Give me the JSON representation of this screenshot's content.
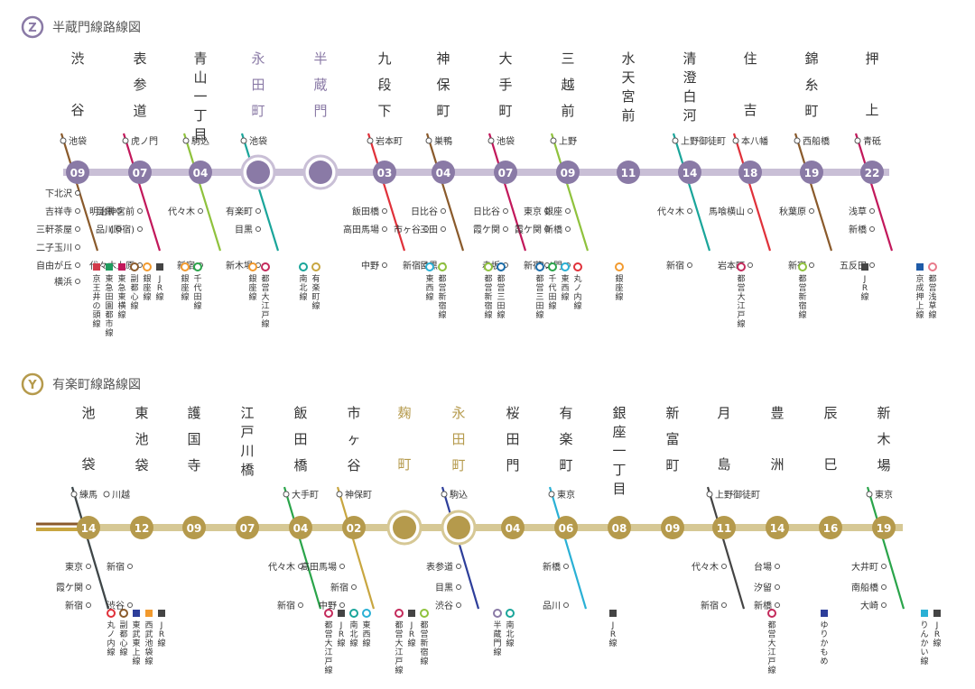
{
  "colors": {
    "hanzomon": "#8a7aa6",
    "hanzomon_line": "#c9bfd6",
    "yurakucho": "#b59a4c",
    "yurakucho_line": "#d6c895"
  },
  "maps": [
    {
      "badge": "Z",
      "title": "半蔵門線路線図",
      "stations": [
        {
          "name": "渋谷",
          "number": "09",
          "highlight": false
        },
        {
          "name": "表参道",
          "number": "07",
          "highlight": false
        },
        {
          "name": "青山一丁目",
          "number": "04",
          "highlight": false
        },
        {
          "name": "永田町",
          "number": "",
          "highlight": true
        },
        {
          "name": "半蔵門",
          "number": "",
          "highlight": true
        },
        {
          "name": "九段下",
          "number": "03",
          "highlight": false
        },
        {
          "name": "神保町",
          "number": "04",
          "highlight": false
        },
        {
          "name": "大手町",
          "number": "07",
          "highlight": false
        },
        {
          "name": "三越前",
          "number": "09",
          "highlight": false
        },
        {
          "name": "水天宮前",
          "number": "11",
          "highlight": false
        },
        {
          "name": "清澄白河",
          "number": "14",
          "highlight": false
        },
        {
          "name": "住吉",
          "number": "18",
          "highlight": false
        },
        {
          "name": "錦糸町",
          "number": "19",
          "highlight": false
        },
        {
          "name": "押上",
          "number": "22",
          "highlight": false
        }
      ],
      "labels_above": [
        {
          "text": "池袋",
          "at": 0
        },
        {
          "text": "虎ノ門",
          "at": 1
        },
        {
          "text": "駒込",
          "at": 2
        },
        {
          "text": "池袋",
          "at": 3
        },
        {
          "text": "岩本町",
          "at": 5
        },
        {
          "text": "巣鴨",
          "at": 6
        },
        {
          "text": "池袋",
          "at": 7
        },
        {
          "text": "上野",
          "at": 8
        },
        {
          "text": "上野御徒町",
          "at": 10
        },
        {
          "text": "本八幡",
          "at": 11
        },
        {
          "text": "西船橋",
          "at": 12
        },
        {
          "text": "青砥",
          "at": 13
        }
      ],
      "labels_below": [
        {
          "text": "下北沢",
          "at": 0,
          "row": 0
        },
        {
          "text": "吉祥寺",
          "at": 0,
          "row": 1
        },
        {
          "text": "三軒茶屋",
          "at": 0,
          "row": 2
        },
        {
          "text": "二子玉川",
          "at": 0,
          "row": 3
        },
        {
          "text": "自由が丘",
          "at": 0,
          "row": 4
        },
        {
          "text": "横浜",
          "at": 0,
          "row": 5
        },
        {
          "text": "目黒",
          "at": 0,
          "row": 1
        },
        {
          "text": "品川",
          "at": 0,
          "row": 2
        },
        {
          "text": "明治神宮前",
          "at": 1,
          "row": 1
        },
        {
          "text": "(原宿)",
          "at": 1,
          "row": 2
        },
        {
          "text": "代々木上原",
          "at": 1,
          "row": 4
        },
        {
          "text": "代々木",
          "at": 2,
          "row": 1
        },
        {
          "text": "新宿",
          "at": 2,
          "row": 4
        },
        {
          "text": "有楽町",
          "at": 3,
          "row": 1
        },
        {
          "text": "目黒",
          "at": 3,
          "row": 2
        },
        {
          "text": "新木場",
          "at": 3,
          "row": 4
        },
        {
          "text": "飯田橋",
          "at": 5,
          "row": 1
        },
        {
          "text": "高田馬場",
          "at": 5,
          "row": 2
        },
        {
          "text": "市ヶ谷",
          "at": 5,
          "row": 2
        },
        {
          "text": "中野",
          "at": 5,
          "row": 4
        },
        {
          "text": "新宿",
          "at": 5,
          "row": 4
        },
        {
          "text": "日比谷",
          "at": 6,
          "row": 1
        },
        {
          "text": "三田",
          "at": 6,
          "row": 2
        },
        {
          "text": "目黒",
          "at": 6,
          "row": 4
        },
        {
          "text": "日比谷",
          "at": 7,
          "row": 1
        },
        {
          "text": "東京",
          "at": 7,
          "row": 1
        },
        {
          "text": "霞ケ関",
          "at": 7,
          "row": 2
        },
        {
          "text": "霞ケ関",
          "at": 7,
          "row": 2
        },
        {
          "text": "赤坂",
          "at": 7,
          "row": 4
        },
        {
          "text": "新宿",
          "at": 7,
          "row": 4
        },
        {
          "text": "銀座",
          "at": 8,
          "row": 1
        },
        {
          "text": "新橋",
          "at": 8,
          "row": 2
        },
        {
          "text": "虎ノ門",
          "at": 8,
          "row": 4
        },
        {
          "text": "代々木",
          "at": 10,
          "row": 1
        },
        {
          "text": "新宿",
          "at": 10,
          "row": 4
        },
        {
          "text": "馬喰横山",
          "at": 11,
          "row": 1
        },
        {
          "text": "岩本町",
          "at": 11,
          "row": 4
        },
        {
          "text": "秋葉原",
          "at": 12,
          "row": 1
        },
        {
          "text": "新宿",
          "at": 12,
          "row": 4
        },
        {
          "text": "浅草",
          "at": 13,
          "row": 1
        },
        {
          "text": "新橋",
          "at": 13,
          "row": 2
        },
        {
          "text": "五反田",
          "at": 13,
          "row": 4
        }
      ],
      "legend": [
        {
          "text": "京王井の頭線",
          "color": "#d23a4a",
          "square": true,
          "x": 107
        },
        {
          "text": "東急田園都市線",
          "color": "#1f9b5e",
          "square": true,
          "x": 121
        },
        {
          "text": "東急東横線",
          "color": "#c2185b",
          "square": true,
          "x": 135
        },
        {
          "text": "副都心線",
          "color": "#8a5a2b",
          "square": false,
          "x": 149
        },
        {
          "text": "銀座線",
          "color": "#f29a2e",
          "square": false,
          "x": 163
        },
        {
          "text": "JR線",
          "color": "#444444",
          "square": true,
          "x": 177
        },
        {
          "text": "銀座線",
          "color": "#f29a2e",
          "square": false,
          "x": 205
        },
        {
          "text": "千代田線",
          "color": "#2aa44a",
          "square": false,
          "x": 219
        },
        {
          "text": "銀座線",
          "color": "#f29a2e",
          "square": false,
          "x": 280
        },
        {
          "text": "都営大江戸線",
          "color": "#c42a5b",
          "square": false,
          "x": 294
        },
        {
          "text": "南北線",
          "color": "#1aa59a",
          "square": false,
          "x": 336
        },
        {
          "text": "有楽町線",
          "color": "#c8a640",
          "square": false,
          "x": 350
        },
        {
          "text": "東西線",
          "color": "#2ab0d5",
          "square": false,
          "x": 476
        },
        {
          "text": "都営新宿線",
          "color": "#8fc23d",
          "square": false,
          "x": 490
        },
        {
          "text": "都営新宿線",
          "color": "#8fc23d",
          "square": false,
          "x": 541
        },
        {
          "text": "都営三田線",
          "color": "#1b6ca8",
          "square": false,
          "x": 555
        },
        {
          "text": "都営三田線",
          "color": "#1b6ca8",
          "square": false,
          "x": 598
        },
        {
          "text": "千代田線",
          "color": "#2aa44a",
          "square": false,
          "x": 612
        },
        {
          "text": "東西線",
          "color": "#2ab0d5",
          "square": false,
          "x": 626
        },
        {
          "text": "丸ノ内線",
          "color": "#e0313a",
          "square": false,
          "x": 640
        },
        {
          "text": "銀座線",
          "color": "#f29a2e",
          "square": false,
          "x": 686
        },
        {
          "text": "都営大江戸線",
          "color": "#c42a5b",
          "square": false,
          "x": 821
        },
        {
          "text": "都営新宿線",
          "color": "#8fc23d",
          "square": false,
          "x": 889
        },
        {
          "text": "JR線",
          "color": "#444444",
          "square": true,
          "x": 958
        },
        {
          "text": "京成押上線",
          "color": "#1f5ba8",
          "square": true,
          "x": 1019
        },
        {
          "text": "都営浅草線",
          "color": "#e87a8a",
          "square": false,
          "x": 1033
        }
      ]
    },
    {
      "badge": "Y",
      "title": "有楽町線路線図",
      "stations": [
        {
          "name": "池袋",
          "number": "14",
          "highlight": false
        },
        {
          "name": "東池袋",
          "number": "12",
          "highlight": false
        },
        {
          "name": "護国寺",
          "number": "09",
          "highlight": false
        },
        {
          "name": "江戸川橋",
          "number": "07",
          "highlight": false
        },
        {
          "name": "飯田橋",
          "number": "04",
          "highlight": false
        },
        {
          "name": "市ヶ谷",
          "number": "02",
          "highlight": false
        },
        {
          "name": "麹町",
          "number": "",
          "highlight": true
        },
        {
          "name": "永田町",
          "number": "",
          "highlight": true
        },
        {
          "name": "桜田門",
          "number": "04",
          "highlight": false
        },
        {
          "name": "有楽町",
          "number": "06",
          "highlight": false
        },
        {
          "name": "銀座一丁目",
          "number": "08",
          "highlight": false
        },
        {
          "name": "新富町",
          "number": "09",
          "highlight": false
        },
        {
          "name": "月島",
          "number": "11",
          "highlight": false
        },
        {
          "name": "豊洲",
          "number": "14",
          "highlight": false
        },
        {
          "name": "辰巳",
          "number": "16",
          "highlight": false
        },
        {
          "name": "新木場",
          "number": "19",
          "highlight": false
        }
      ],
      "labels_above": [
        {
          "text": "練馬",
          "at": 0
        },
        {
          "text": "川越",
          "at": 0
        },
        {
          "text": "大手町",
          "at": 4
        },
        {
          "text": "神保町",
          "at": 5
        },
        {
          "text": "駒込",
          "at": 7
        },
        {
          "text": "東京",
          "at": 9
        },
        {
          "text": "上野御徒町",
          "at": 12
        },
        {
          "text": "東京",
          "at": 15
        }
      ],
      "labels_below": [
        {
          "text": "東京",
          "at": 0,
          "row": 1
        },
        {
          "text": "新宿",
          "at": 0,
          "row": 1
        },
        {
          "text": "霞ケ関",
          "at": 0,
          "row": 2
        },
        {
          "text": "新宿",
          "at": 0,
          "row": 3
        },
        {
          "text": "渋谷",
          "at": 0,
          "row": 3
        },
        {
          "text": "代々木",
          "at": 4,
          "row": 1
        },
        {
          "text": "高田馬場",
          "at": 4,
          "row": 1
        },
        {
          "text": "新宿",
          "at": 4,
          "row": 3
        },
        {
          "text": "中野",
          "at": 4,
          "row": 3
        },
        {
          "text": "新宿",
          "at": 5,
          "row": 2
        },
        {
          "text": "表参道",
          "at": 7,
          "row": 1
        },
        {
          "text": "目黒",
          "at": 7,
          "row": 2
        },
        {
          "text": "渋谷",
          "at": 7,
          "row": 3
        },
        {
          "text": "新橋",
          "at": 9,
          "row": 1
        },
        {
          "text": "品川",
          "at": 9,
          "row": 3
        },
        {
          "text": "代々木",
          "at": 12,
          "row": 1
        },
        {
          "text": "新宿",
          "at": 12,
          "row": 3
        },
        {
          "text": "台場",
          "at": 13,
          "row": 1
        },
        {
          "text": "汐留",
          "at": 13,
          "row": 2
        },
        {
          "text": "新橋",
          "at": 13,
          "row": 3
        },
        {
          "text": "大井町",
          "at": 15,
          "row": 1
        },
        {
          "text": "南船橋",
          "at": 15,
          "row": 2
        },
        {
          "text": "大崎",
          "at": 15,
          "row": 3
        }
      ],
      "legend": [
        {
          "text": "丸ノ内線",
          "color": "#e0313a",
          "square": false,
          "x": 123
        },
        {
          "text": "副都心線",
          "color": "#8a5a2b",
          "square": false,
          "x": 137
        },
        {
          "text": "東武東上線",
          "color": "#2d3e9a",
          "square": true,
          "x": 151
        },
        {
          "text": "西武池袋線",
          "color": "#f29a2e",
          "square": true,
          "x": 165
        },
        {
          "text": "JR線",
          "color": "#444444",
          "square": true,
          "x": 179
        },
        {
          "text": "都営大江戸線",
          "color": "#c42a5b",
          "square": false,
          "x": 364
        },
        {
          "text": "JR線",
          "color": "#444444",
          "square": true,
          "x": 378
        },
        {
          "text": "南北線",
          "color": "#1aa59a",
          "square": false,
          "x": 392
        },
        {
          "text": "東西線",
          "color": "#2ab0d5",
          "square": false,
          "x": 406
        },
        {
          "text": "都営大江戸線",
          "color": "#c42a5b",
          "square": false,
          "x": 442
        },
        {
          "text": "JR線",
          "color": "#444444",
          "square": true,
          "x": 456
        },
        {
          "text": "都営新宿線",
          "color": "#8fc23d",
          "square": false,
          "x": 470
        },
        {
          "text": "半蔵門線",
          "color": "#8a7aa6",
          "square": false,
          "x": 551
        },
        {
          "text": "南北線",
          "color": "#1aa59a",
          "square": false,
          "x": 565
        },
        {
          "text": "JR線",
          "color": "#444444",
          "square": true,
          "x": 679
        },
        {
          "text": "都営大江戸線",
          "color": "#c42a5b",
          "square": false,
          "x": 855
        },
        {
          "text": "ゆりかもめ",
          "color": "#2d3e9a",
          "square": true,
          "x": 913
        },
        {
          "text": "りんかい線",
          "color": "#2ab0d5",
          "square": true,
          "x": 1024
        },
        {
          "text": "JR線",
          "color": "#444444",
          "square": true,
          "x": 1038
        }
      ]
    }
  ]
}
